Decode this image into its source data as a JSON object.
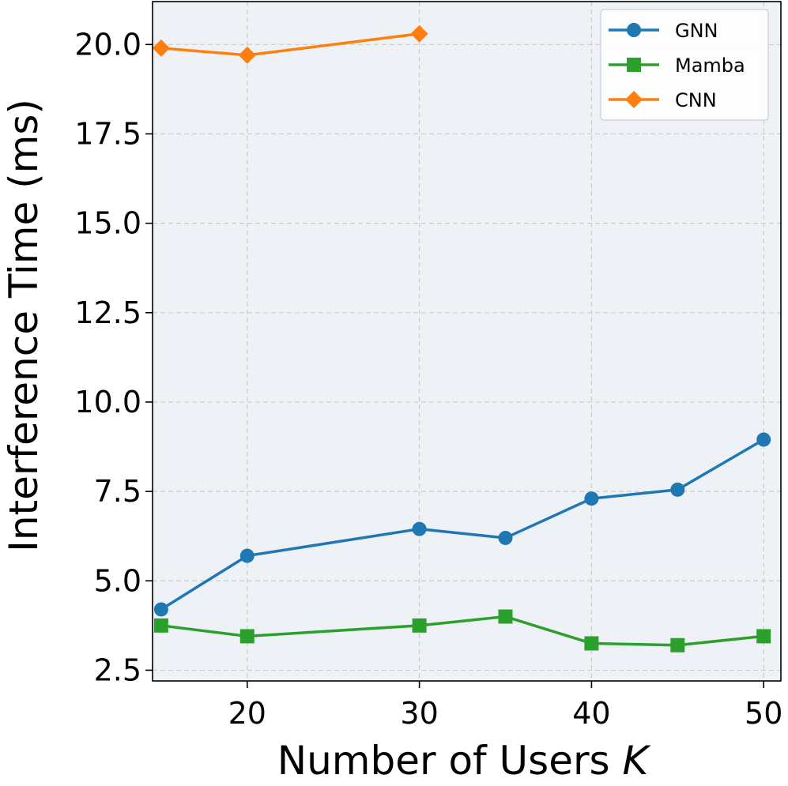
{
  "chart_data": {
    "type": "line",
    "title": "",
    "xlabel": "Number of Users ",
    "xlabel_var": "K",
    "ylabel": "Interference Time (ms)",
    "xlim": [
      14.5,
      51
    ],
    "ylim": [
      2.2,
      21.2
    ],
    "xticks": [
      20,
      30,
      40,
      50
    ],
    "xtick_labels": [
      "20",
      "30",
      "40",
      "50"
    ],
    "yticks": [
      2.5,
      5.0,
      7.5,
      10.0,
      12.5,
      15.0,
      17.5,
      20.0
    ],
    "ytick_labels": [
      "2.5",
      "5.0",
      "7.5",
      "10.0",
      "12.5",
      "15.0",
      "17.5",
      "20.0"
    ],
    "grid": true,
    "legend_position": "top-right",
    "series": [
      {
        "name": "GNN",
        "marker": "circle",
        "color": "#1f77b4",
        "x": [
          15,
          20,
          30,
          35,
          40,
          45,
          50
        ],
        "y": [
          4.2,
          5.7,
          6.45,
          6.2,
          7.3,
          7.55,
          8.95
        ]
      },
      {
        "name": "Mamba",
        "marker": "square",
        "color": "#2ca02c",
        "x": [
          15,
          20,
          30,
          35,
          40,
          45,
          50
        ],
        "y": [
          3.75,
          3.45,
          3.75,
          4.0,
          3.25,
          3.2,
          3.45
        ]
      },
      {
        "name": "CNN",
        "marker": "diamond",
        "color": "#ff7f0e",
        "x": [
          15,
          20,
          30
        ],
        "y": [
          19.9,
          19.7,
          20.3
        ]
      }
    ]
  }
}
